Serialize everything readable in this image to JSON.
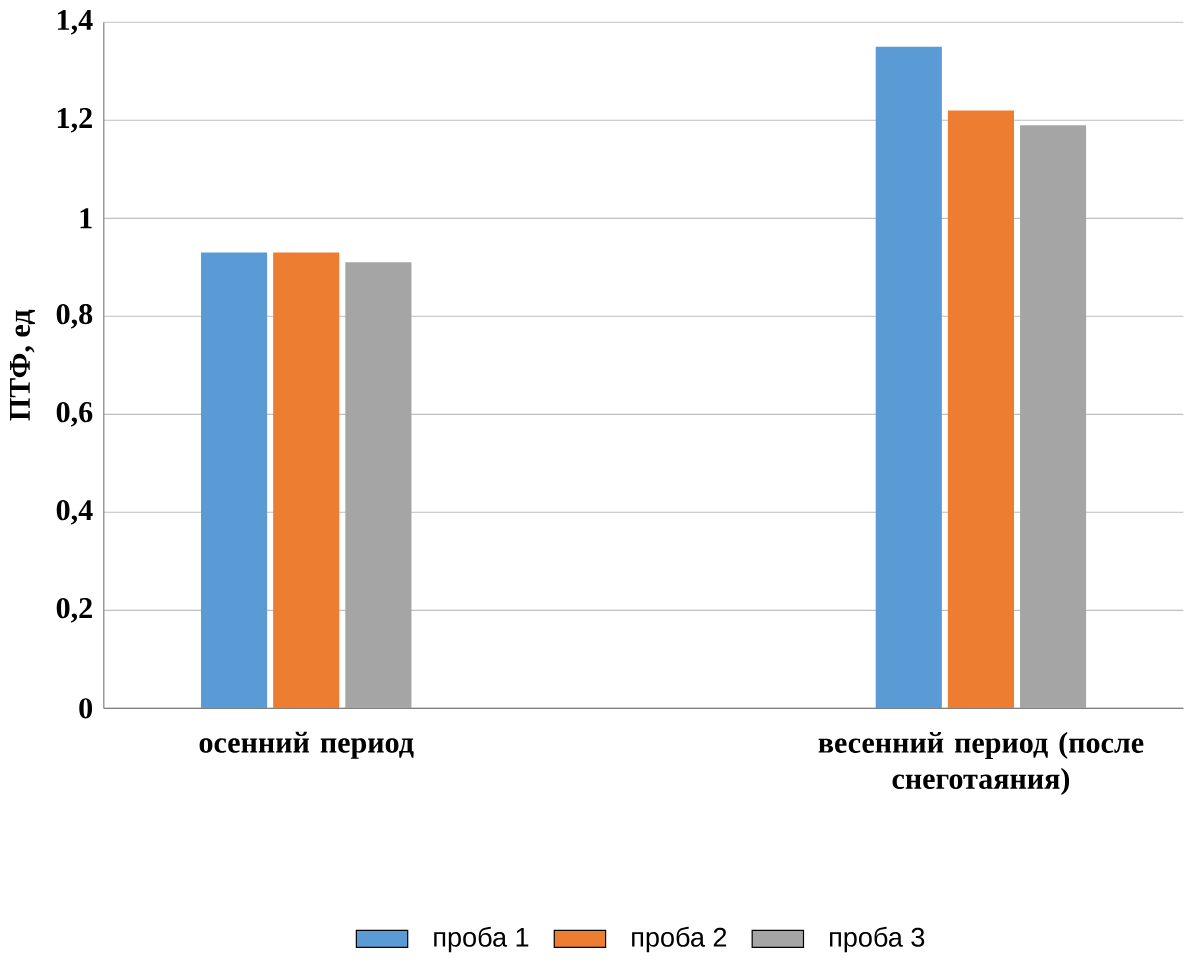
{
  "chart_data": {
    "type": "bar",
    "ylabel": "ПТФ, ед",
    "categories": [
      "осенний период",
      "весенний период (после снеготаяния)"
    ],
    "series": [
      {
        "name": "проба 1",
        "color": "#5b9bd5",
        "values": [
          0.93,
          1.35
        ]
      },
      {
        "name": "проба 2",
        "color": "#ed7d31",
        "values": [
          0.93,
          1.22
        ]
      },
      {
        "name": "проба 3",
        "color": "#a5a5a5",
        "values": [
          0.91,
          1.19
        ]
      }
    ],
    "ylim": [
      0,
      1.4
    ],
    "yticks": [
      0,
      {
        "value": 0.2,
        "label": "0,2"
      },
      {
        "value": 0.4,
        "label": "0,4"
      },
      {
        "value": 0.6,
        "label": "0,6"
      },
      {
        "value": 0.8,
        "label": "0,8"
      },
      1,
      {
        "value": 1.2,
        "label": "1,2"
      },
      {
        "value": 1.4,
        "label": "1,4"
      }
    ],
    "grid": "y",
    "legend": "bottom"
  }
}
